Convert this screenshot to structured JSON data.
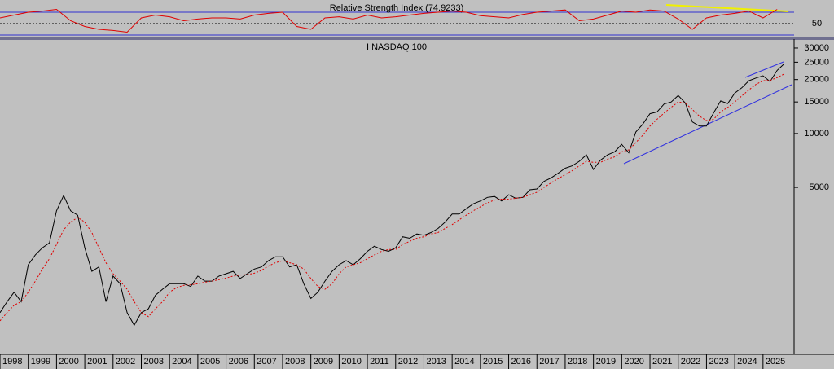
{
  "chart_data": [
    {
      "type": "line",
      "title": "Relative Strength Index (74.9233)",
      "x": [
        1998,
        1998.5,
        1999,
        1999.5,
        2000,
        2000.5,
        2001,
        2001.5,
        2002,
        2002.5,
        2003,
        2003.5,
        2004,
        2004.5,
        2005,
        2005.5,
        2006,
        2006.5,
        2007,
        2007.5,
        2008,
        2008.5,
        2009,
        2009.5,
        2010,
        2010.5,
        2011,
        2011.5,
        2012,
        2012.5,
        2013,
        2013.5,
        2014,
        2014.5,
        2015,
        2015.5,
        2016,
        2016.5,
        2017,
        2017.5,
        2018,
        2018.5,
        2019,
        2019.5,
        2020,
        2020.5,
        2021,
        2021.5,
        2022,
        2022.5,
        2023,
        2023.5,
        2024,
        2024.5,
        2025,
        2025.5
      ],
      "series": [
        {
          "color": "#e00000",
          "values": [
            60,
            65,
            70,
            72,
            75,
            55,
            45,
            40,
            38,
            35,
            60,
            65,
            62,
            55,
            58,
            60,
            60,
            58,
            65,
            68,
            70,
            45,
            40,
            60,
            62,
            58,
            65,
            60,
            62,
            65,
            68,
            70,
            72,
            70,
            64,
            62,
            60,
            66,
            70,
            72,
            74,
            55,
            58,
            65,
            72,
            70,
            74,
            72,
            58,
            40,
            60,
            65,
            68,
            72,
            60,
            75
          ]
        }
      ],
      "xlim": [
        1998,
        2026.1
      ],
      "ylim": [
        28.6,
        88.6
      ],
      "yticks": [
        50
      ]
    },
    {
      "type": "line",
      "title": "I NASDAQ 100",
      "log_scale": true,
      "x": [
        1998,
        1998.25,
        1998.5,
        1998.75,
        1999,
        1999.25,
        1999.5,
        1999.75,
        2000,
        2000.25,
        2000.5,
        2000.75,
        2001,
        2001.25,
        2001.5,
        2001.75,
        2002,
        2002.25,
        2002.5,
        2002.75,
        2003,
        2003.25,
        2003.5,
        2003.75,
        2004,
        2004.25,
        2004.5,
        2004.75,
        2005,
        2005.25,
        2005.5,
        2005.75,
        2006,
        2006.25,
        2006.5,
        2006.75,
        2007,
        2007.25,
        2007.5,
        2007.75,
        2008,
        2008.25,
        2008.5,
        2008.75,
        2009,
        2009.25,
        2009.5,
        2009.75,
        2010,
        2010.25,
        2010.5,
        2010.75,
        2011,
        2011.25,
        2011.5,
        2011.75,
        2012,
        2012.25,
        2012.5,
        2012.75,
        2013,
        2013.25,
        2013.5,
        2013.75,
        2014,
        2014.25,
        2014.5,
        2014.75,
        2015,
        2015.25,
        2015.5,
        2015.75,
        2016,
        2016.25,
        2016.5,
        2016.75,
        2017,
        2017.25,
        2017.5,
        2017.75,
        2018,
        2018.25,
        2018.5,
        2018.75,
        2019,
        2019.25,
        2019.5,
        2019.75,
        2020,
        2020.25,
        2020.5,
        2020.75,
        2021,
        2021.25,
        2021.5,
        2021.75,
        2022,
        2022.25,
        2022.5,
        2022.75,
        2023,
        2023.25,
        2023.5,
        2023.75,
        2024,
        2024.25,
        2024.5,
        2024.75,
        2025,
        2025.25,
        2025.5,
        2025.75
      ],
      "series": [
        {
          "color": "#000000",
          "values": [
            1000,
            1150,
            1300,
            1150,
            1850,
            2100,
            2300,
            2450,
            3700,
            4500,
            3700,
            3500,
            2300,
            1700,
            1800,
            1150,
            1600,
            1450,
            1000,
            850,
            1000,
            1050,
            1250,
            1350,
            1450,
            1450,
            1450,
            1400,
            1600,
            1500,
            1500,
            1600,
            1650,
            1700,
            1550,
            1650,
            1750,
            1800,
            1950,
            2050,
            2050,
            1800,
            1850,
            1450,
            1200,
            1300,
            1500,
            1700,
            1850,
            1950,
            1850,
            2000,
            2200,
            2350,
            2250,
            2200,
            2300,
            2650,
            2600,
            2750,
            2700,
            2800,
            2950,
            3200,
            3550,
            3550,
            3800,
            4050,
            4200,
            4400,
            4450,
            4200,
            4550,
            4350,
            4400,
            4850,
            4900,
            5400,
            5650,
            6000,
            6400,
            6600,
            7000,
            7600,
            6300,
            7100,
            7600,
            7900,
            8700,
            7800,
            10200,
            11300,
            12900,
            13200,
            14600,
            15000,
            16300,
            14800,
            11600,
            11000,
            11000,
            13000,
            15200,
            14700,
            16800,
            18000,
            19700,
            20400,
            21000,
            19500,
            22500,
            24500
          ]
        },
        {
          "color": "#e00000",
          "dashed": true,
          "values": [
            900,
            1000,
            1100,
            1150,
            1300,
            1500,
            1750,
            2000,
            2400,
            2900,
            3200,
            3400,
            3200,
            2800,
            2300,
            1900,
            1650,
            1500,
            1350,
            1150,
            1000,
            950,
            1050,
            1150,
            1300,
            1380,
            1420,
            1430,
            1450,
            1480,
            1500,
            1530,
            1560,
            1600,
            1620,
            1630,
            1660,
            1720,
            1820,
            1900,
            1950,
            1900,
            1850,
            1750,
            1550,
            1400,
            1350,
            1450,
            1650,
            1800,
            1850,
            1900,
            2000,
            2100,
            2200,
            2250,
            2250,
            2400,
            2500,
            2600,
            2650,
            2750,
            2800,
            2950,
            3100,
            3300,
            3500,
            3700,
            3900,
            4100,
            4250,
            4300,
            4300,
            4350,
            4400,
            4550,
            4700,
            5000,
            5300,
            5600,
            5900,
            6200,
            6600,
            7000,
            6900,
            6900,
            7200,
            7400,
            7900,
            8100,
            8900,
            9800,
            11000,
            12000,
            13000,
            14000,
            15000,
            14800,
            13600,
            12500,
            11800,
            12000,
            13200,
            14000,
            15000,
            16200,
            17500,
            18800,
            19700,
            19800,
            20500,
            21500
          ]
        }
      ],
      "xlim": [
        1998,
        2026.1
      ],
      "ylim": [
        585,
        33650
      ],
      "yticks": [
        5000,
        10000,
        15000,
        20000,
        25000,
        30000
      ],
      "xticks": [
        1998,
        1999,
        2000,
        2001,
        2002,
        2003,
        2004,
        2005,
        2006,
        2007,
        2008,
        2009,
        2010,
        2011,
        2012,
        2013,
        2014,
        2015,
        2016,
        2017,
        2018,
        2019,
        2020,
        2021,
        2022,
        2023,
        2024,
        2025
      ]
    }
  ]
}
